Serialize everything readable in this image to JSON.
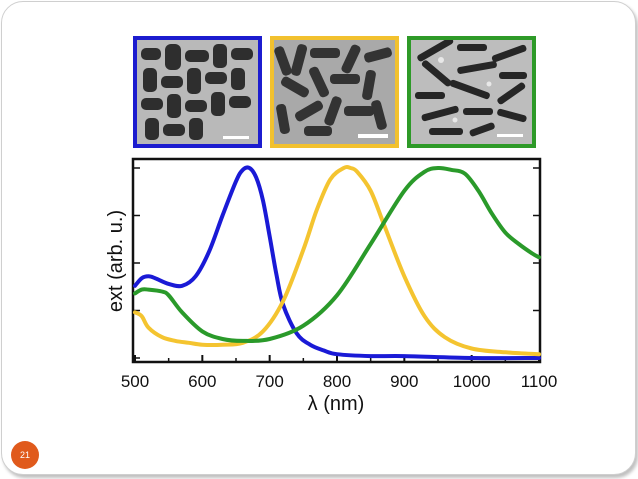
{
  "slide": {
    "page_number": "21"
  },
  "tem_panels": [
    {
      "name": "tem-panel-short-rods",
      "border_color": "#1c1ccf"
    },
    {
      "name": "tem-panel-medium-rods",
      "border_color": "#f2c12e"
    },
    {
      "name": "tem-panel-long-rods",
      "border_color": "#2e9a28"
    }
  ],
  "chart_data": {
    "type": "line",
    "title": "",
    "xlabel": "λ (nm)",
    "ylabel": "ext (arb. u.)",
    "xlim": [
      500,
      1100
    ],
    "ylim": [
      0,
      1
    ],
    "x_ticks": [
      500,
      600,
      700,
      800,
      900,
      1000,
      1100
    ],
    "x_tick_labels": [
      "500",
      "600",
      "700",
      "800",
      "900",
      "1000",
      "1100"
    ],
    "grid": false,
    "legend": "none",
    "series": [
      {
        "name": "blue",
        "color": "#1a1ad6",
        "x": [
          500,
          510,
          520,
          530,
          550,
          570,
          590,
          610,
          630,
          650,
          660,
          670,
          680,
          690,
          700,
          710,
          720,
          740,
          760,
          780,
          800,
          850,
          900,
          1000,
          1100
        ],
        "y": [
          0.38,
          0.42,
          0.43,
          0.42,
          0.39,
          0.38,
          0.43,
          0.56,
          0.75,
          0.93,
          0.99,
          1.0,
          0.95,
          0.83,
          0.64,
          0.44,
          0.28,
          0.13,
          0.07,
          0.04,
          0.02,
          0.01,
          0.01,
          0.0,
          0.0
        ]
      },
      {
        "name": "yellow",
        "color": "#f4c430",
        "x": [
          500,
          510,
          520,
          540,
          560,
          580,
          600,
          630,
          660,
          690,
          720,
          750,
          770,
          790,
          810,
          820,
          830,
          850,
          870,
          900,
          930,
          960,
          1000,
          1050,
          1100
        ],
        "y": [
          0.24,
          0.22,
          0.16,
          0.11,
          0.09,
          0.08,
          0.07,
          0.07,
          0.08,
          0.14,
          0.3,
          0.57,
          0.78,
          0.94,
          1.0,
          1.0,
          0.98,
          0.88,
          0.7,
          0.43,
          0.22,
          0.11,
          0.05,
          0.03,
          0.02
        ]
      },
      {
        "name": "green",
        "color": "#2a9a2a",
        "x": [
          500,
          510,
          520,
          540,
          550,
          570,
          600,
          630,
          660,
          700,
          750,
          800,
          850,
          900,
          930,
          950,
          970,
          990,
          1010,
          1030,
          1050,
          1070,
          1090,
          1100
        ],
        "y": [
          0.34,
          0.36,
          0.36,
          0.35,
          0.33,
          0.24,
          0.14,
          0.1,
          0.09,
          0.1,
          0.17,
          0.33,
          0.6,
          0.88,
          0.98,
          1.0,
          0.99,
          0.97,
          0.88,
          0.76,
          0.66,
          0.6,
          0.55,
          0.53
        ]
      }
    ]
  }
}
